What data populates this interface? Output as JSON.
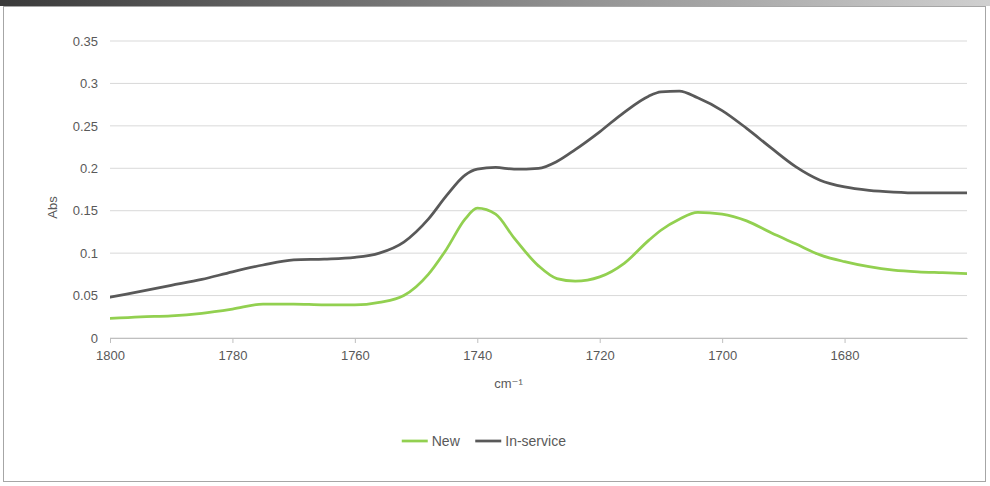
{
  "chart_data": {
    "type": "line",
    "x_label": "cm⁻¹",
    "y_label": "Abs",
    "x": [
      1800,
      1795,
      1790,
      1785,
      1780,
      1775,
      1770,
      1765,
      1760,
      1756,
      1752,
      1748,
      1745,
      1742,
      1740,
      1737,
      1734,
      1730,
      1727,
      1724,
      1720,
      1716,
      1712,
      1710,
      1707,
      1704,
      1700,
      1696,
      1692,
      1688,
      1684,
      1680,
      1676,
      1672,
      1668,
      1664,
      1660
    ],
    "series": [
      {
        "name": "New",
        "color": "#92d050",
        "values": [
          0.023,
          0.025,
          0.026,
          0.029,
          0.034,
          0.04,
          0.04,
          0.039,
          0.039,
          0.042,
          0.05,
          0.075,
          0.105,
          0.14,
          0.153,
          0.146,
          0.118,
          0.085,
          0.07,
          0.067,
          0.072,
          0.088,
          0.115,
          0.127,
          0.14,
          0.148,
          0.146,
          0.138,
          0.124,
          0.111,
          0.098,
          0.09,
          0.084,
          0.08,
          0.078,
          0.077,
          0.076
        ]
      },
      {
        "name": "In-service",
        "color": "#595959",
        "values": [
          0.048,
          0.055,
          0.062,
          0.069,
          0.078,
          0.086,
          0.092,
          0.093,
          0.095,
          0.1,
          0.113,
          0.14,
          0.168,
          0.192,
          0.199,
          0.201,
          0.199,
          0.2,
          0.208,
          0.222,
          0.243,
          0.266,
          0.285,
          0.29,
          0.291,
          0.283,
          0.268,
          0.247,
          0.224,
          0.202,
          0.186,
          0.178,
          0.174,
          0.172,
          0.171,
          0.171,
          0.171
        ]
      }
    ],
    "xlim": [
      1800,
      1660
    ],
    "xticks": [
      1800,
      1780,
      1760,
      1740,
      1720,
      1700,
      1680
    ],
    "ylim": [
      0,
      0.35
    ],
    "yticks": [
      0,
      0.05,
      0.1,
      0.15,
      0.2,
      0.25,
      0.3,
      0.35
    ],
    "grid": true,
    "legend": "bottom"
  }
}
